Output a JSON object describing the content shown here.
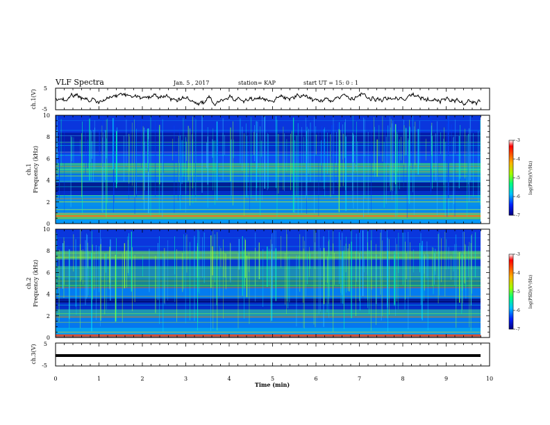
{
  "header": {
    "title": "VLF Spectra",
    "date": "Jan. 5 , 2017",
    "station": "station= KAP",
    "start": "start UT =  15: 0  : 1"
  },
  "chart_data": [
    {
      "type": "line",
      "panel": "waveform-ch1",
      "ylabel": "ch.1(V)",
      "yticks": [
        "5",
        "-5"
      ],
      "ylim": [
        -5,
        5
      ],
      "xlim": [
        0,
        10
      ]
    },
    {
      "type": "heatmap",
      "panel": "spectrogram-ch1",
      "ylabel_top": "ch.1",
      "ylabel": "Frequency (kHz)",
      "yticks": [
        "0",
        "2",
        "4",
        "6",
        "8",
        "10"
      ],
      "ylim": [
        0,
        10
      ],
      "xlim": [
        0,
        9.8
      ],
      "colorbar": {
        "label": "log(PSD)(V²/Hz)",
        "ticks": [
          "-3",
          "-4",
          "-5",
          "-6",
          "-7"
        ],
        "range": [
          -7,
          -3
        ]
      }
    },
    {
      "type": "heatmap",
      "panel": "spectrogram-ch2",
      "ylabel_top": "ch.2",
      "ylabel": "Frequency (kHz)",
      "yticks": [
        "0",
        "2",
        "4",
        "6",
        "8",
        "10"
      ],
      "ylim": [
        0,
        10
      ],
      "xlim": [
        0,
        9.8
      ],
      "colorbar": {
        "label": "log(PSD)(V²/Hz)",
        "ticks": [
          "-3",
          "-4",
          "-5",
          "-6",
          "-7"
        ],
        "range": [
          -7,
          -3
        ]
      }
    },
    {
      "type": "line",
      "panel": "waveform-ch3",
      "ylabel": "ch.3(V)",
      "yticks": [
        "5",
        "-5"
      ],
      "ylim": [
        -5,
        5
      ],
      "xlim": [
        0,
        10
      ],
      "level": 0
    }
  ],
  "xaxis": {
    "label": "Time (min)",
    "ticks": [
      "0",
      "1",
      "2",
      "3",
      "4",
      "5",
      "6",
      "7",
      "8",
      "9",
      "10"
    ]
  }
}
